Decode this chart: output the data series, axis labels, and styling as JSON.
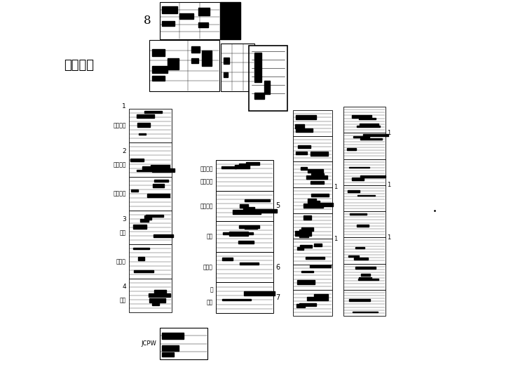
{
  "bg_color": "#ffffff",
  "fig_w": 7.49,
  "fig_h": 5.3,
  "label_fire_wall": "防火隔墙",
  "label_8": "8",
  "label_4": "4",
  "label_3": "3",
  "label_2": "2",
  "label_1": "1",
  "label_7": "7",
  "label_6": "6",
  "label_5": "5",
  "label_JCPW": "JCPW",
  "label_zheng": "整",
  "label_shiwu": "十五",
  "label_ershiceng": "二十层",
  "label_puceng": "普层",
  "label_dixia1": "地下一层",
  "label_dixia2": "地下二层",
  "label_dixia3": "地下三层",
  "label_shiwu2": "十五",
  "label_ershiceng2": "二十层",
  "label_puceng2": "普层",
  "label_dixia1b": "地下一层",
  "label_dixia3b": "地下三层",
  "label_dixia2b": "地下二层"
}
